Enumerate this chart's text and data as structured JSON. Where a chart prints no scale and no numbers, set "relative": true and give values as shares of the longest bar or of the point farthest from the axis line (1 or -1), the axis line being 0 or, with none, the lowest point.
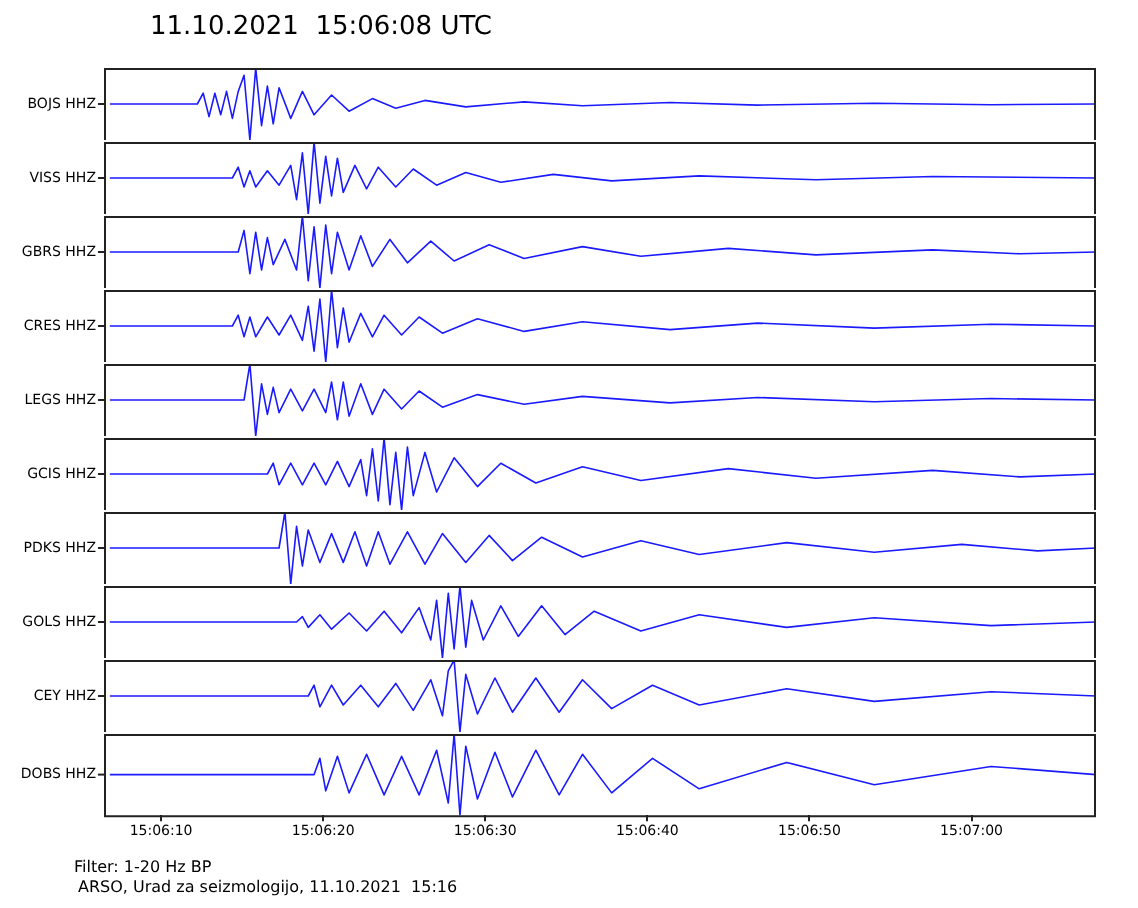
{
  "chart_data": [
    {
      "type": "line",
      "title": "11.10.2021  15:06:08 UTC",
      "ylabel": "BOJS HHZ",
      "relative": true,
      "marker": "none",
      "grid": false,
      "tick_labels": false,
      "xlim": [
        15.1018,
        15.1188
      ],
      "series": [
        {
          "color": "#1a1aff",
          "x": [
            15.1019,
            15.1034,
            15.1035,
            15.1036,
            15.1037,
            15.1038,
            15.1039,
            15.104,
            15.1041,
            15.1042,
            15.1043,
            15.1044,
            15.1045,
            15.1046,
            15.1047,
            15.1048,
            15.105,
            15.1052,
            15.1054,
            15.1057,
            15.106,
            15.1064,
            15.1068,
            15.1073,
            15.108,
            15.109,
            15.11,
            15.1115,
            15.113,
            15.115,
            15.117,
            15.1188
          ],
          "values": [
            0.5,
            0.5,
            0.65,
            0.325,
            0.65,
            0.35,
            0.675,
            0.3,
            0.675,
            0.9,
            0,
            1,
            0.2,
            0.75,
            0.225,
            0.725,
            0.3,
            0.675,
            0.35,
            0.625,
            0.4,
            0.575,
            0.44,
            0.55,
            0.46,
            0.53,
            0.475,
            0.52,
            0.485,
            0.51,
            0.49,
            0.5
          ]
        }
      ]
    },
    {
      "type": "line",
      "ylabel": "VISS HHZ",
      "relative": true,
      "marker": "none",
      "grid": false,
      "tick_labels": false,
      "xlim": [
        15.1018,
        15.1188
      ],
      "series": [
        {
          "color": "#1a1aff",
          "x": [
            15.1019,
            15.104,
            15.1041,
            15.1042,
            15.1043,
            15.1044,
            15.1046,
            15.1048,
            15.105,
            15.1051,
            15.1052,
            15.1053,
            15.1054,
            15.1055,
            15.1056,
            15.1057,
            15.1058,
            15.1059,
            15.1061,
            15.1063,
            15.1065,
            15.1068,
            15.1071,
            15.1075,
            15.108,
            15.1086,
            15.1095,
            15.1105,
            15.112,
            15.114,
            15.116,
            15.1188
          ],
          "values": [
            0.5,
            0.5,
            0.65,
            0.375,
            0.6,
            0.375,
            0.6,
            0.4,
            0.675,
            0.2,
            0.85,
            0,
            1,
            0.15,
            0.8,
            0.25,
            0.775,
            0.3,
            0.675,
            0.35,
            0.65,
            0.375,
            0.625,
            0.4,
            0.575,
            0.44,
            0.55,
            0.46,
            0.53,
            0.475,
            0.52,
            0.5
          ]
        }
      ]
    },
    {
      "type": "line",
      "ylabel": "GBRS HHZ",
      "relative": true,
      "marker": "none",
      "grid": false,
      "tick_labels": false,
      "xlim": [
        15.1018,
        15.1188
      ],
      "series": [
        {
          "color": "#1a1aff",
          "x": [
            15.1019,
            15.1041,
            15.1042,
            15.1043,
            15.1044,
            15.1045,
            15.1046,
            15.1047,
            15.1049,
            15.1051,
            15.1052,
            15.1053,
            15.1054,
            15.1055,
            15.1056,
            15.1057,
            15.1058,
            15.106,
            15.1062,
            15.1064,
            15.1067,
            15.107,
            15.1074,
            15.1078,
            15.1084,
            15.109,
            15.11,
            15.111,
            15.1125,
            15.114,
            15.116,
            15.1175,
            15.1188
          ],
          "values": [
            0.5,
            0.5,
            0.8,
            0.2,
            0.775,
            0.25,
            0.7,
            0.325,
            0.675,
            0.25,
            1,
            0.1,
            0.85,
            0,
            0.875,
            0.2,
            0.775,
            0.25,
            0.725,
            0.3,
            0.675,
            0.35,
            0.65,
            0.375,
            0.6,
            0.41,
            0.575,
            0.44,
            0.55,
            0.46,
            0.53,
            0.475,
            0.5
          ]
        }
      ]
    },
    {
      "type": "line",
      "ylabel": "CRES HHZ",
      "relative": true,
      "marker": "none",
      "grid": false,
      "tick_labels": false,
      "xlim": [
        15.1018,
        15.1188
      ],
      "series": [
        {
          "color": "#1a1aff",
          "x": [
            15.1019,
            15.104,
            15.1041,
            15.1042,
            15.1043,
            15.1044,
            15.1046,
            15.1048,
            15.105,
            15.1052,
            15.1053,
            15.1054,
            15.1055,
            15.1056,
            15.1057,
            15.1058,
            15.1059,
            15.106,
            15.1062,
            15.1064,
            15.1066,
            15.1069,
            15.1072,
            15.1076,
            15.1082,
            15.109,
            15.11,
            15.1115,
            15.113,
            15.115,
            15.117,
            15.1188
          ],
          "values": [
            0.5,
            0.5,
            0.65,
            0.35,
            0.625,
            0.35,
            0.625,
            0.375,
            0.65,
            0.3,
            0.775,
            0.15,
            0.875,
            0,
            1,
            0.2,
            0.75,
            0.275,
            0.675,
            0.35,
            0.65,
            0.375,
            0.625,
            0.4,
            0.6,
            0.425,
            0.56,
            0.45,
            0.54,
            0.47,
            0.525,
            0.5
          ]
        }
      ]
    },
    {
      "type": "line",
      "ylabel": "LEGS HHZ",
      "relative": true,
      "marker": "none",
      "grid": false,
      "tick_labels": false,
      "xlim": [
        15.1018,
        15.1188
      ],
      "series": [
        {
          "color": "#1a1aff",
          "x": [
            15.1019,
            15.1042,
            15.1043,
            15.1044,
            15.1045,
            15.1046,
            15.1047,
            15.1048,
            15.105,
            15.1052,
            15.1054,
            15.1056,
            15.1057,
            15.1058,
            15.1059,
            15.106,
            15.1062,
            15.1064,
            15.1066,
            15.1069,
            15.1072,
            15.1076,
            15.1082,
            15.109,
            15.11,
            15.1115,
            15.113,
            15.115,
            15.117,
            15.1188
          ],
          "values": [
            0.5,
            0.5,
            1,
            0,
            0.725,
            0.3,
            0.675,
            0.325,
            0.65,
            0.35,
            0.65,
            0.325,
            0.75,
            0.225,
            0.75,
            0.275,
            0.725,
            0.3,
            0.65,
            0.375,
            0.625,
            0.4,
            0.575,
            0.44,
            0.55,
            0.46,
            0.535,
            0.475,
            0.52,
            0.5
          ]
        }
      ]
    },
    {
      "type": "line",
      "ylabel": "GCIS HHZ",
      "relative": true,
      "marker": "none",
      "grid": false,
      "tick_labels": false,
      "xlim": [
        15.1018,
        15.1188
      ],
      "series": [
        {
          "color": "#1a1aff",
          "x": [
            15.1019,
            15.1046,
            15.1047,
            15.1048,
            15.105,
            15.1052,
            15.1054,
            15.1056,
            15.1058,
            15.106,
            15.1062,
            15.1063,
            15.1064,
            15.1065,
            15.1066,
            15.1067,
            15.1068,
            15.1069,
            15.107,
            15.1071,
            15.1073,
            15.1075,
            15.1078,
            15.1082,
            15.1086,
            15.1092,
            15.11,
            15.111,
            15.1125,
            15.114,
            15.116,
            15.1175,
            15.1188
          ],
          "values": [
            0.5,
            0.5,
            0.65,
            0.35,
            0.65,
            0.35,
            0.65,
            0.35,
            0.675,
            0.325,
            0.7,
            0.2,
            0.85,
            0.125,
            1,
            0.075,
            0.8,
            0,
            0.875,
            0.2,
            0.8,
            0.25,
            0.725,
            0.325,
            0.65,
            0.375,
            0.6,
            0.41,
            0.575,
            0.44,
            0.55,
            0.46,
            0.5
          ]
        }
      ]
    },
    {
      "type": "line",
      "ylabel": "PDKS HHZ",
      "relative": true,
      "marker": "none",
      "grid": false,
      "tick_labels": false,
      "xlim": [
        15.1018,
        15.1188
      ],
      "series": [
        {
          "color": "#1a1aff",
          "x": [
            15.1019,
            15.1048,
            15.1049,
            15.105,
            15.1051,
            15.1052,
            15.1053,
            15.1055,
            15.1057,
            15.1059,
            15.1061,
            15.1063,
            15.1065,
            15.1067,
            15.107,
            15.1073,
            15.1076,
            15.108,
            15.1084,
            15.1088,
            15.1093,
            15.11,
            15.111,
            15.112,
            15.1135,
            15.115,
            15.1165,
            15.1178,
            15.1188
          ],
          "values": [
            0.5,
            0.5,
            1,
            0,
            0.8,
            0.25,
            0.75,
            0.3,
            0.7,
            0.3,
            0.725,
            0.25,
            0.725,
            0.275,
            0.725,
            0.275,
            0.7,
            0.3,
            0.675,
            0.325,
            0.65,
            0.375,
            0.6,
            0.41,
            0.575,
            0.44,
            0.55,
            0.46,
            0.5
          ]
        }
      ]
    },
    {
      "type": "line",
      "ylabel": "GOLS HHZ",
      "relative": true,
      "marker": "none",
      "grid": false,
      "tick_labels": false,
      "xlim": [
        15.1018,
        15.1188
      ],
      "series": [
        {
          "color": "#1a1aff",
          "x": [
            15.1019,
            15.1051,
            15.1052,
            15.1053,
            15.1055,
            15.1057,
            15.106,
            15.1063,
            15.1066,
            15.1069,
            15.1072,
            15.1074,
            15.1075,
            15.1076,
            15.1077,
            15.1078,
            15.1079,
            15.108,
            15.1081,
            15.1083,
            15.1086,
            15.1089,
            15.1093,
            15.1097,
            15.1102,
            15.111,
            15.112,
            15.1135,
            15.115,
            15.117,
            15.1188
          ],
          "values": [
            0.5,
            0.5,
            0.575,
            0.425,
            0.6,
            0.4,
            0.625,
            0.375,
            0.65,
            0.35,
            0.7,
            0.25,
            0.8,
            0,
            0.9,
            0.125,
            1,
            0.15,
            0.8,
            0.25,
            0.725,
            0.3,
            0.725,
            0.325,
            0.65,
            0.375,
            0.6,
            0.425,
            0.56,
            0.45,
            0.5
          ]
        }
      ]
    },
    {
      "type": "line",
      "ylabel": "CEY HHZ",
      "relative": true,
      "marker": "none",
      "grid": false,
      "tick_labels": false,
      "xlim": [
        15.1018,
        15.1188
      ],
      "series": [
        {
          "color": "#1a1aff",
          "x": [
            15.1019,
            15.1053,
            15.1054,
            15.1055,
            15.1057,
            15.1059,
            15.1062,
            15.1065,
            15.1068,
            15.1071,
            15.1074,
            15.1076,
            15.1077,
            15.1078,
            15.1079,
            15.108,
            15.1082,
            15.1085,
            15.1088,
            15.1092,
            15.1096,
            15.11,
            15.1105,
            15.1112,
            15.112,
            15.1135,
            15.115,
            15.117,
            15.1188
          ],
          "values": [
            0.5,
            0.5,
            0.65,
            0.35,
            0.65,
            0.375,
            0.65,
            0.35,
            0.675,
            0.3,
            0.725,
            0.225,
            0.85,
            1,
            0,
            0.8,
            0.25,
            0.75,
            0.275,
            0.75,
            0.275,
            0.725,
            0.325,
            0.65,
            0.375,
            0.6,
            0.425,
            0.56,
            0.5
          ]
        }
      ]
    },
    {
      "type": "line",
      "ylabel": "DOBS HHZ",
      "relative": true,
      "marker": "none",
      "grid": false,
      "tick_labels": "x",
      "xlim": [
        15.1018,
        15.1188
      ],
      "xticks": [
        {
          "value": 15.102778,
          "label": "15:06:10"
        },
        {
          "value": 15.105556,
          "label": "15:06:20"
        },
        {
          "value": 15.108333,
          "label": "15:06:30"
        },
        {
          "value": 15.111111,
          "label": "15:06:40"
        },
        {
          "value": 15.113889,
          "label": "15:06:50"
        },
        {
          "value": 15.116667,
          "label": "15:07:00"
        }
      ],
      "annotations": [
        "Filter: 1-20 Hz BP",
        "ARSO, Urad za seizmologijo, 11.10.2021  15:16"
      ],
      "series": [
        {
          "color": "#1a1aff",
          "x": [
            15.1019,
            15.1054,
            15.1055,
            15.1056,
            15.1058,
            15.106,
            15.1063,
            15.1066,
            15.1069,
            15.1072,
            15.1075,
            15.1077,
            15.1078,
            15.1079,
            15.108,
            15.1082,
            15.1085,
            15.1088,
            15.1092,
            15.1096,
            15.11,
            15.1105,
            15.1112,
            15.112,
            15.1135,
            15.115,
            15.117,
            15.1188
          ],
          "values": [
            0.5,
            0.5,
            0.7,
            0.3,
            0.725,
            0.275,
            0.75,
            0.25,
            0.725,
            0.25,
            0.8,
            0.15,
            1,
            0,
            0.85,
            0.2,
            0.775,
            0.225,
            0.8,
            0.25,
            0.75,
            0.275,
            0.7,
            0.325,
            0.65,
            0.375,
            0.6,
            0.5
          ]
        }
      ]
    }
  ]
}
